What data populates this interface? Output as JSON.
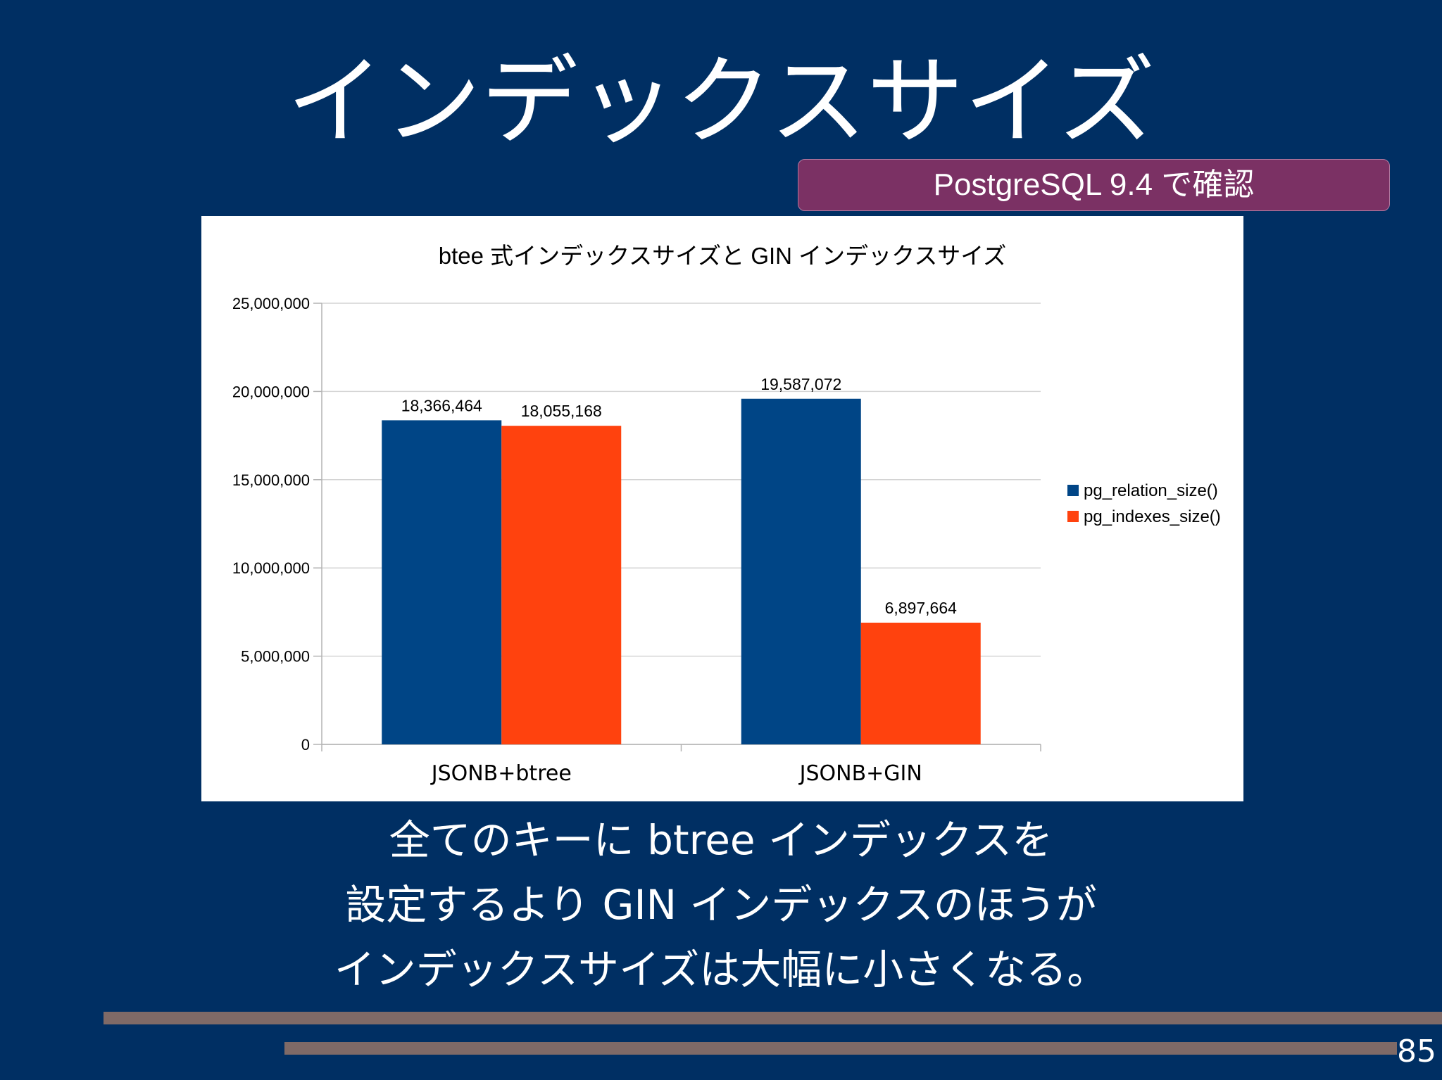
{
  "slide": {
    "title": "インデックスサイズ",
    "badge": "PostgreSQL 9.4 で確認",
    "caption_lines": [
      "全てのキーに btree インデックスを",
      "設定するより GIN インデックスのほうが",
      "インデックスサイズは大幅に小さくなる。"
    ],
    "page_number": "85"
  },
  "colors": {
    "background": "#002f63",
    "badge": "#7b3164",
    "series_1": "#004586",
    "series_2": "#ff420e",
    "deco_bar": "#7f6a67"
  },
  "chart_data": {
    "type": "bar",
    "title": "btee 式インデックスサイズと GIN インデックスサイズ",
    "categories": [
      "JSONB+btree",
      "JSONB+GIN"
    ],
    "series": [
      {
        "name": "pg_relation_size()",
        "values": [
          18366464,
          19587072
        ],
        "labels": [
          "18,366,464",
          "19,587,072"
        ],
        "color": "#004586"
      },
      {
        "name": "pg_indexes_size()",
        "values": [
          18055168,
          6897664
        ],
        "labels": [
          "18,055,168",
          "6,897,664"
        ],
        "color": "#ff420e"
      }
    ],
    "y_ticks": [
      "0",
      "5,000,000",
      "10,000,000",
      "15,000,000",
      "20,000,000",
      "25,000,000"
    ],
    "ylim": [
      0,
      25000000
    ],
    "grid": true,
    "legend_position": "right"
  }
}
